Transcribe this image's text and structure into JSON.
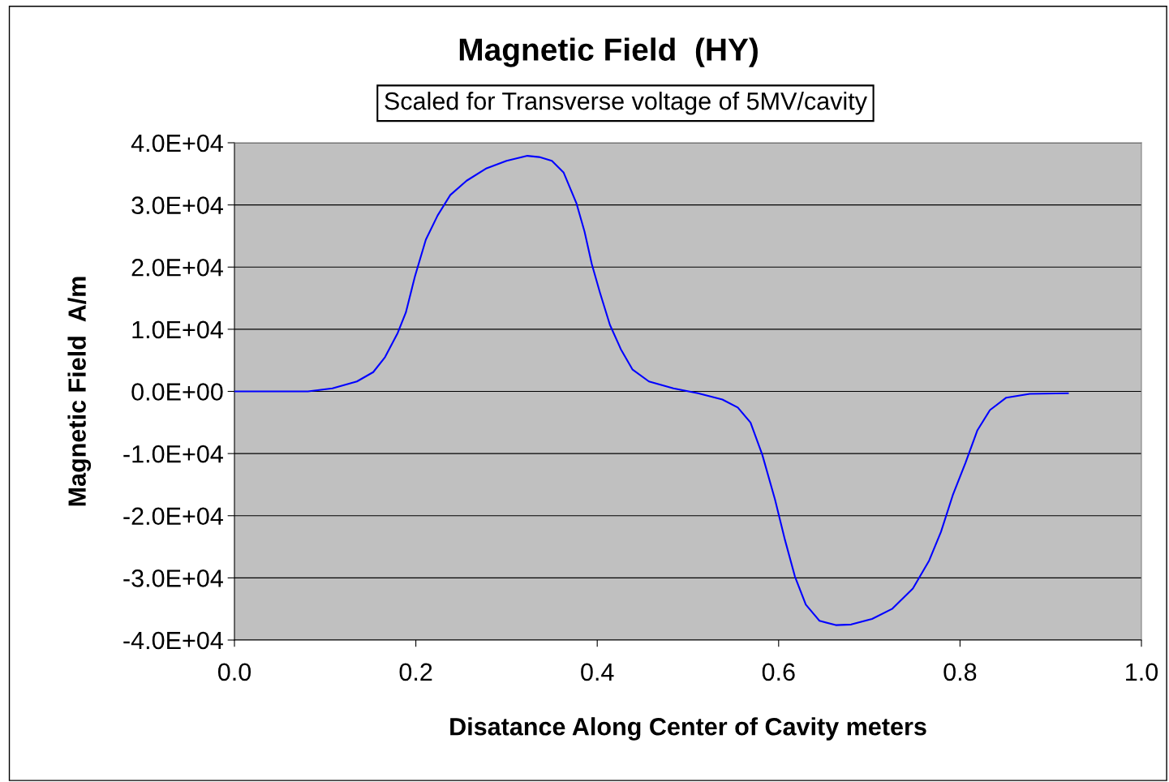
{
  "chart_data": {
    "type": "line",
    "title": "Magnetic Field  (HY)",
    "subtitle": "Scaled for Transverse voltage of 5MV/cavity",
    "xlabel": "Disatance Along Center of Cavity meters",
    "ylabel": "Magnetic Field  A/m",
    "xlim": [
      0,
      1
    ],
    "xticks": [
      {
        "value": 0,
        "label": "0.0"
      },
      0.2,
      0.4,
      0.6,
      0.8,
      {
        "value": 1,
        "label": "1.0"
      }
    ],
    "ylim": [
      -40000,
      40000
    ],
    "yticks": [
      {
        "value": -40000,
        "label": "-4.0E+04"
      },
      {
        "value": -30000,
        "label": "-3.0E+04"
      },
      {
        "value": -20000,
        "label": "-2.0E+04"
      },
      {
        "value": -10000,
        "label": "-1.0E+04"
      },
      {
        "value": 0,
        "label": "0.0E+00"
      },
      {
        "value": 10000,
        "label": "1.0E+04"
      },
      {
        "value": 20000,
        "label": "2.0E+04"
      },
      {
        "value": 30000,
        "label": "3.0E+04"
      },
      {
        "value": 40000,
        "label": "4.0E+04"
      }
    ],
    "grid": "y",
    "marker": "none",
    "line_style": "solid",
    "series": [
      {
        "color": "#0000ff",
        "x": [
          0,
          0.081,
          0.108,
          0.135,
          0.153,
          0.166,
          0.18,
          0.189,
          0.199,
          0.211,
          0.224,
          0.238,
          0.256,
          0.278,
          0.3,
          0.323,
          0.336,
          0.35,
          0.363,
          0.377,
          0.386,
          0.394,
          0.403,
          0.414,
          0.426,
          0.439,
          0.457,
          0.484,
          0.511,
          0.538,
          0.555,
          0.569,
          0.582,
          0.596,
          0.607,
          0.618,
          0.63,
          0.645,
          0.663,
          0.68,
          0.703,
          0.725,
          0.748,
          0.766,
          0.779,
          0.792,
          0.806,
          0.819,
          0.833,
          0.851,
          0.877,
          0.919
        ],
        "values": [
          0,
          0,
          500,
          1600,
          3100,
          5500,
          9400,
          12700,
          18500,
          24400,
          28300,
          31600,
          33900,
          35900,
          37100,
          37900,
          37700,
          37100,
          35200,
          30300,
          25700,
          20500,
          15900,
          10700,
          6800,
          3500,
          1600,
          500,
          -300,
          -1300,
          -2600,
          -5000,
          -10200,
          -17400,
          -23900,
          -29800,
          -34300,
          -36900,
          -37600,
          -37500,
          -36600,
          -35000,
          -31700,
          -27200,
          -22600,
          -16700,
          -11500,
          -6300,
          -3000,
          -1000,
          -400,
          -300
        ]
      }
    ]
  }
}
